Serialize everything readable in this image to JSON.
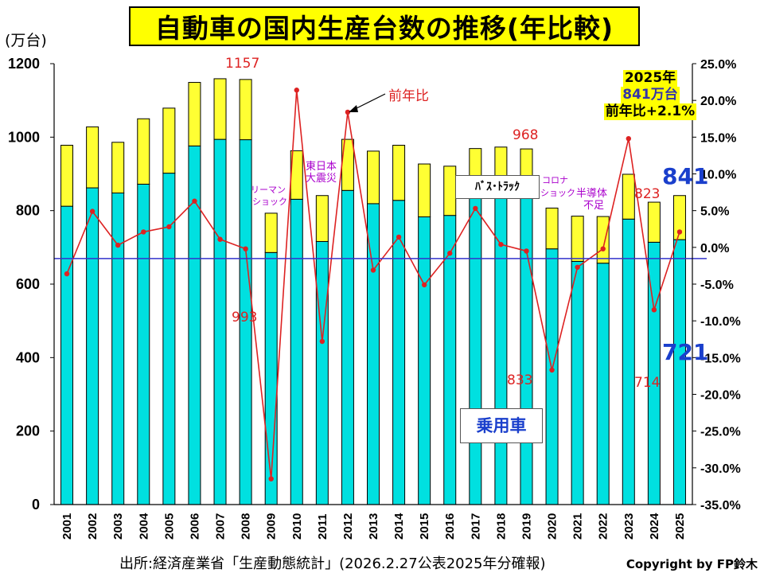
{
  "title": "自動車の国内生産台数の推移(年比較)",
  "y_left_unit": "(万台)",
  "source_note": "出所:経済産業省「生産動態統計」(2026.2.27公表2025年分確報)",
  "copyright": "Copyright by FP鈴木",
  "summary": {
    "year": "2025年",
    "total": "841万台",
    "yoy": "前年比+2.1%"
  },
  "annotations": {
    "yoy_label": "前年比",
    "lehman_line1": "リーマン",
    "lehman_line2": "ショック",
    "quake_line1": "東日本",
    "quake_line2": "大震災",
    "corona_line1": "コロナ",
    "corona_line2": "ショック",
    "chip_line1": "半導体",
    "chip_line2": "不足",
    "bus_truck": "ﾊﾞｽ･ﾄﾗｯｸ",
    "passenger": "乗用車",
    "v1157": "1157",
    "v993": "993",
    "v968": "968",
    "v833": "833",
    "v823": "823",
    "v714": "714",
    "v841": "841",
    "v721": "721"
  },
  "colors": {
    "passenger": "#00e0e0",
    "bus_truck": "#ffff33",
    "yoy_line": "#dd2222",
    "baseline": "#3333cc",
    "title_bg": "#ffff00"
  },
  "chart_data": {
    "type": "bar",
    "stacked": true,
    "categories": [
      "2001",
      "2002",
      "2003",
      "2004",
      "2005",
      "2006",
      "2007",
      "2008",
      "2009",
      "2010",
      "2011",
      "2012",
      "2013",
      "2014",
      "2015",
      "2016",
      "2017",
      "2018",
      "2019",
      "2020",
      "2021",
      "2022",
      "2023",
      "2024",
      "2025"
    ],
    "series": [
      {
        "name": "乗用車",
        "values": [
          812,
          862,
          848,
          872,
          902,
          976,
          994,
          993,
          686,
          831,
          716,
          855,
          819,
          828,
          783,
          787,
          835,
          835,
          833,
          696,
          662,
          657,
          777,
          714,
          721
        ]
      },
      {
        "name": "ﾊﾞｽ･ﾄﾗｯｸ",
        "values": [
          166,
          166,
          138,
          178,
          177,
          173,
          165,
          164,
          107,
          132,
          125,
          139,
          143,
          150,
          144,
          134,
          134,
          138,
          135,
          111,
          123,
          127,
          122,
          109,
          120
        ]
      },
      {
        "name": "前年比",
        "axis": "right",
        "values": [
          -3.6,
          4.9,
          0.3,
          2.1,
          2.8,
          6.3,
          1.1,
          -0.2,
          -31.5,
          21.4,
          -12.8,
          18.4,
          -3.1,
          1.4,
          -5.1,
          -0.8,
          5.3,
          0.4,
          -0.5,
          -16.7,
          -2.7,
          -0.2,
          14.8,
          -8.5,
          2.1
        ]
      }
    ],
    "ylim": [
      0,
      1200
    ],
    "yticks": [
      "0",
      "200",
      "400",
      "600",
      "800",
      "1000",
      "1200"
    ],
    "y2lim": [
      -35,
      25
    ],
    "y2ticks": [
      "25.0%",
      "20.0%",
      "15.0%",
      "10.0%",
      "5.0%",
      "0.0%",
      "-5.0%",
      "-10.0%",
      "-15.0%",
      "-20.0%",
      "-25.0%",
      "-30.0%",
      "-35.0%"
    ],
    "grid": false
  }
}
